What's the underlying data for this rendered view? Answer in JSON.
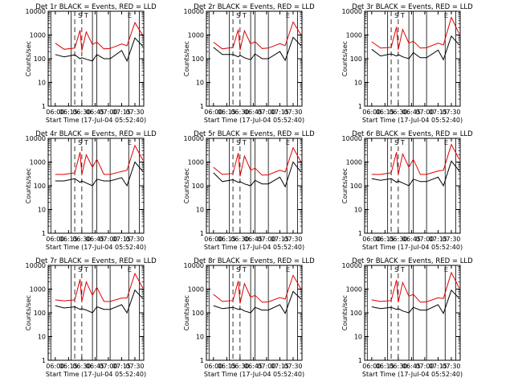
{
  "figure": {
    "panel_title_template": "Det {det}  BLACK = Events, RED = LLD",
    "start_time_label": "Start Time (17-Jul-04 05:52:40)",
    "y_axis_label": "Counts/sec",
    "x_tick_labels": [
      "06:00",
      "06:15",
      "06:30",
      "06:45",
      "07:00",
      "07:15",
      "07:30"
    ],
    "y_tick_labels": [
      "1",
      "10",
      "100",
      "1000",
      "10000"
    ],
    "flag_letters": [
      "S",
      "T",
      "E"
    ],
    "colors": {
      "events": "#000000",
      "lld": "#e00000",
      "axes": "#000000"
    }
  },
  "chart_data": [
    {
      "type": "line",
      "title": "Det 1r  BLACK = Events, RED = LLD",
      "xlabel": "Start Time (17-Jul-04 05:52:40)",
      "ylabel": "Counts/sec",
      "xlim_min": [
        -8,
        100
      ],
      "ylim": [
        1,
        10000
      ],
      "yscale": "log",
      "x_min": [
        0,
        10,
        22,
        28,
        30,
        35,
        42,
        47,
        55,
        62,
        75,
        81,
        90,
        99
      ],
      "series": [
        {
          "name": "Events",
          "color": "#000000",
          "values": [
            150,
            120,
            145,
            100,
            110,
            95,
            80,
            150,
            100,
            100,
            220,
            80,
            750,
            330
          ]
        },
        {
          "name": "LLD",
          "color": "#e00000",
          "values": [
            450,
            250,
            280,
            1600,
            220,
            1350,
            400,
            500,
            260,
            270,
            420,
            350,
            3300,
            950
          ]
        }
      ]
    },
    {
      "type": "line",
      "title": "Det 2r  BLACK = Events, RED = LLD",
      "xlabel": "Start Time (17-Jul-04 05:52:40)",
      "ylabel": "Counts/sec",
      "xlim_min": [
        -8,
        100
      ],
      "ylim": [
        1,
        10000
      ],
      "yscale": "log",
      "x_min": [
        0,
        10,
        22,
        28,
        30,
        35,
        42,
        47,
        55,
        62,
        75,
        81,
        90,
        99
      ],
      "series": [
        {
          "name": "Events",
          "color": "#000000",
          "values": [
            300,
            150,
            150,
            120,
            140,
            110,
            90,
            160,
            100,
            100,
            200,
            85,
            800,
            350
          ]
        },
        {
          "name": "LLD",
          "color": "#e00000",
          "values": [
            500,
            260,
            300,
            1700,
            230,
            1500,
            420,
            520,
            270,
            280,
            430,
            360,
            3500,
            1000
          ]
        }
      ]
    },
    {
      "type": "line",
      "title": "Det 3r  BLACK = Events, RED = LLD",
      "xlabel": "Start Time (17-Jul-04 05:52:40)",
      "ylabel": "Counts/sec",
      "xlim_min": [
        -8,
        100
      ],
      "ylim": [
        1,
        10000
      ],
      "yscale": "log",
      "x_min": [
        0,
        10,
        22,
        28,
        30,
        35,
        42,
        47,
        55,
        62,
        75,
        81,
        90,
        99
      ],
      "series": [
        {
          "name": "Events",
          "color": "#000000",
          "values": [
            250,
            130,
            160,
            130,
            150,
            120,
            100,
            180,
            110,
            110,
            230,
            90,
            900,
            380
          ]
        },
        {
          "name": "LLD",
          "color": "#e00000",
          "values": [
            520,
            280,
            300,
            2200,
            240,
            1700,
            450,
            550,
            280,
            290,
            450,
            380,
            5500,
            1100
          ]
        }
      ]
    },
    {
      "type": "line",
      "title": "Det 4r  BLACK = Events, RED = LLD",
      "xlabel": "Start Time (17-Jul-04 05:52:40)",
      "ylabel": "Counts/sec",
      "xlim_min": [
        -8,
        100
      ],
      "ylim": [
        1,
        10000
      ],
      "yscale": "log",
      "x_min": [
        0,
        10,
        22,
        28,
        30,
        35,
        42,
        47,
        55,
        62,
        75,
        81,
        90,
        99
      ],
      "series": [
        {
          "name": "Events",
          "color": "#000000",
          "values": [
            160,
            160,
            200,
            140,
            160,
            130,
            100,
            190,
            160,
            160,
            220,
            100,
            1000,
            400
          ]
        },
        {
          "name": "LLD",
          "color": "#e00000",
          "values": [
            300,
            300,
            350,
            2600,
            300,
            2000,
            600,
            1300,
            300,
            300,
            400,
            450,
            5000,
            1200
          ]
        }
      ]
    },
    {
      "type": "line",
      "title": "Det 5r  BLACK = Events, RED = LLD",
      "xlabel": "Start Time (17-Jul-04 05:52:40)",
      "ylabel": "Counts/sec",
      "xlim_min": [
        -8,
        100
      ],
      "ylim": [
        1,
        10000
      ],
      "yscale": "log",
      "x_min": [
        0,
        10,
        22,
        28,
        30,
        35,
        42,
        47,
        55,
        62,
        75,
        81,
        90,
        99
      ],
      "series": [
        {
          "name": "Events",
          "color": "#000000",
          "values": [
            350,
            150,
            180,
            140,
            150,
            120,
            100,
            170,
            120,
            120,
            230,
            90,
            1000,
            380
          ]
        },
        {
          "name": "LLD",
          "color": "#e00000",
          "values": [
            600,
            300,
            330,
            2400,
            250,
            1800,
            450,
            550,
            280,
            290,
            450,
            380,
            4000,
            1000
          ]
        }
      ]
    },
    {
      "type": "line",
      "title": "Det 6r  BLACK = Events, RED = LLD",
      "xlabel": "Start Time (17-Jul-04 05:52:40)",
      "ylabel": "Counts/sec",
      "xlim_min": [
        -8,
        100
      ],
      "ylim": [
        1,
        10000
      ],
      "yscale": "log",
      "x_min": [
        0,
        10,
        22,
        28,
        30,
        35,
        42,
        47,
        55,
        62,
        75,
        81,
        90,
        99
      ],
      "series": [
        {
          "name": "Events",
          "color": "#000000",
          "values": [
            200,
            170,
            200,
            140,
            160,
            130,
            100,
            190,
            150,
            150,
            230,
            100,
            1100,
            420
          ]
        },
        {
          "name": "LLD",
          "color": "#e00000",
          "values": [
            300,
            300,
            350,
            2600,
            300,
            2200,
            600,
            1300,
            300,
            300,
            420,
            450,
            5500,
            1300
          ]
        }
      ]
    },
    {
      "type": "line",
      "title": "Det 7r  BLACK = Events, RED = LLD",
      "xlabel": "Start Time (17-Jul-04 05:52:40)",
      "ylabel": "Counts/sec",
      "xlim_min": [
        -8,
        100
      ],
      "ylim": [
        1,
        10000
      ],
      "yscale": "log",
      "x_min": [
        0,
        10,
        22,
        28,
        30,
        35,
        42,
        47,
        55,
        62,
        75,
        81,
        90,
        99
      ],
      "series": [
        {
          "name": "Events",
          "color": "#000000",
          "values": [
            200,
            160,
            180,
            140,
            150,
            130,
            100,
            180,
            140,
            140,
            220,
            100,
            900,
            400
          ]
        },
        {
          "name": "LLD",
          "color": "#e00000",
          "values": [
            350,
            320,
            350,
            2600,
            300,
            2000,
            550,
            1200,
            300,
            300,
            420,
            420,
            4500,
            1100
          ]
        }
      ]
    },
    {
      "type": "line",
      "title": "Det 8r  BLACK = Events, RED = LLD",
      "xlabel": "Start Time (17-Jul-04 05:52:40)",
      "ylabel": "Counts/sec",
      "xlim_min": [
        -8,
        100
      ],
      "ylim": [
        1,
        10000
      ],
      "yscale": "log",
      "x_min": [
        0,
        10,
        22,
        28,
        30,
        35,
        42,
        47,
        55,
        62,
        75,
        81,
        90,
        99
      ],
      "series": [
        {
          "name": "Events",
          "color": "#000000",
          "values": [
            200,
            150,
            170,
            140,
            150,
            120,
            100,
            170,
            130,
            130,
            220,
            95,
            800,
            380
          ]
        },
        {
          "name": "LLD",
          "color": "#e00000",
          "values": [
            600,
            300,
            330,
            2200,
            250,
            1700,
            450,
            550,
            280,
            290,
            440,
            380,
            3800,
            1000
          ]
        }
      ]
    },
    {
      "type": "line",
      "title": "Det 9r  BLACK = Events, RED = LLD",
      "xlabel": "Start Time (17-Jul-04 05:52:40)",
      "ylabel": "Counts/sec",
      "xlim_min": [
        -8,
        100
      ],
      "ylim": [
        1,
        10000
      ],
      "yscale": "log",
      "x_min": [
        0,
        10,
        22,
        28,
        30,
        35,
        42,
        47,
        55,
        62,
        75,
        81,
        90,
        99
      ],
      "series": [
        {
          "name": "Events",
          "color": "#000000",
          "values": [
            180,
            150,
            170,
            140,
            150,
            120,
            100,
            170,
            130,
            130,
            220,
            95,
            900,
            400
          ]
        },
        {
          "name": "LLD",
          "color": "#e00000",
          "values": [
            350,
            300,
            330,
            2400,
            280,
            1900,
            500,
            600,
            280,
            290,
            430,
            400,
            5000,
            1100
          ]
        }
      ]
    }
  ]
}
